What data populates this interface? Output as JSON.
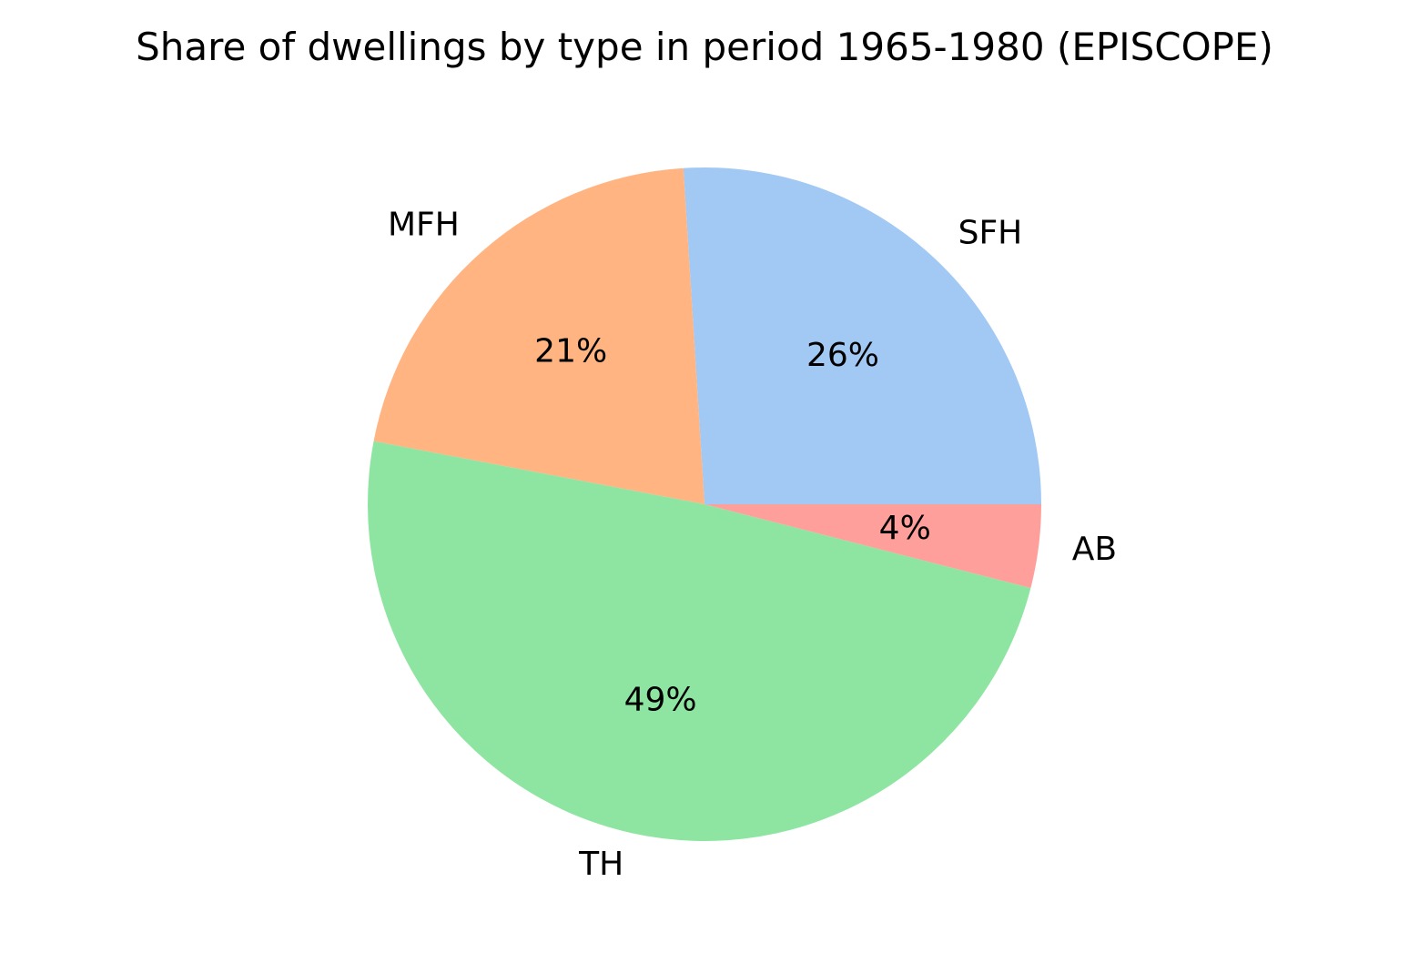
{
  "chart_data": {
    "type": "pie",
    "title": "Share of dwellings by type in period 1965-1980 (EPISCOPE)",
    "start_angle_deg": 0,
    "direction": "counterclockwise",
    "slices": [
      {
        "label": "SFH",
        "value": 26,
        "pct_label": "26%",
        "color": "#a1c9f4"
      },
      {
        "label": "MFH",
        "value": 21,
        "pct_label": "21%",
        "color": "#ffb482"
      },
      {
        "label": "TH",
        "value": 49,
        "pct_label": "49%",
        "color": "#8de5a1"
      },
      {
        "label": "AB",
        "value": 4,
        "pct_label": "4%",
        "color": "#ff9f9b"
      }
    ]
  }
}
